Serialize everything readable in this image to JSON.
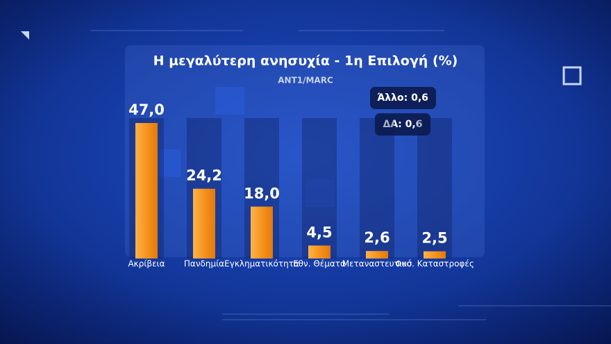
{
  "chart_data": {
    "type": "bar",
    "title": "Η μεγαλύτερη ανησυχία - 1η Επιλογή (%)",
    "subtitle": "ANT1/MARC",
    "categories": [
      "Ακρίβεια",
      "Πανδημία",
      "Εγκληματικότητα",
      "Εθν. Θέματα",
      "Μεταναστευτικό",
      "Φυσ. Καταστροφές"
    ],
    "values": [
      47.0,
      24.2,
      18.0,
      4.5,
      2.6,
      2.5
    ],
    "value_labels": [
      "47,0",
      "24,2",
      "18,0",
      "4,5",
      "2,6",
      "2,5"
    ],
    "color": "#f7931e",
    "annotations": [
      "Άλλο: 0,6",
      "ΔΑ: 0,6"
    ]
  }
}
